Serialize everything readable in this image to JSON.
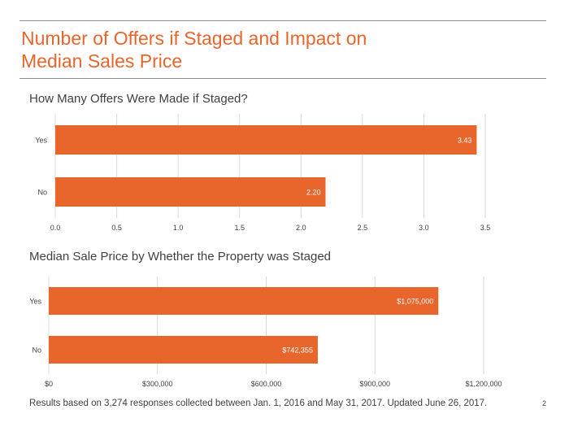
{
  "slide": {
    "title_line1": "Number of Offers if Staged and Impact on",
    "title_line2": "Median Sales Price",
    "footnote": "Results based on 3,274 responses collected between Jan. 1, 2016 and May 31, 2017. Updated June 26, 2017.",
    "page_number": "2"
  },
  "colors": {
    "accent": "#e8652c",
    "bar": "#e8652c",
    "grid": "#d9d9d9",
    "text": "#404040"
  },
  "chart_data": [
    {
      "type": "bar",
      "orientation": "horizontal",
      "title": "How Many Offers Were Made if Staged?",
      "categories": [
        "Yes",
        "No"
      ],
      "values": [
        3.43,
        2.2
      ],
      "value_labels": [
        "3.43",
        "2.20"
      ],
      "xlabel": "",
      "ylabel": "",
      "xlim": [
        0,
        3.5
      ],
      "x_ticks": [
        0,
        0.5,
        1.0,
        1.5,
        2.0,
        2.5,
        3.0,
        3.5
      ],
      "x_tick_labels": [
        "0.0",
        "0.5",
        "1.0",
        "1.5",
        "2.0",
        "2.5",
        "3.0",
        "3.5"
      ],
      "grid": true,
      "legend": "none"
    },
    {
      "type": "bar",
      "orientation": "horizontal",
      "title": "Median Sale Price by Whether the Property was Staged",
      "categories": [
        "Yes",
        "No"
      ],
      "values": [
        1075000,
        742355
      ],
      "value_labels": [
        "$1,075,000",
        "$742,355"
      ],
      "xlabel": "",
      "ylabel": "",
      "xlim": [
        0,
        1200000
      ],
      "x_ticks": [
        0,
        300000,
        600000,
        900000,
        1200000
      ],
      "x_tick_labels": [
        "$0",
        "$300,000",
        "$600,000",
        "$900,000",
        "$1,200,000"
      ],
      "grid": true,
      "legend": "none"
    }
  ]
}
